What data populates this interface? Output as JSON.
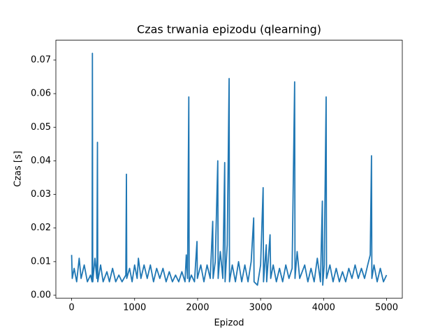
{
  "chart_data": {
    "type": "line",
    "title": "Czas trwania epizodu (qlearning)",
    "x_label": "Epizod",
    "y_label": "Czas [s]",
    "color": "#1f77b4",
    "x": [
      0,
      10,
      40,
      80,
      120,
      150,
      200,
      250,
      300,
      325,
      330,
      335,
      370,
      400,
      410,
      415,
      460,
      500,
      560,
      600,
      650,
      700,
      750,
      800,
      860,
      870,
      875,
      920,
      960,
      1000,
      1040,
      1060,
      1100,
      1150,
      1200,
      1250,
      1300,
      1350,
      1400,
      1450,
      1500,
      1550,
      1600,
      1650,
      1700,
      1750,
      1800,
      1820,
      1840,
      1860,
      1866,
      1900,
      1950,
      1990,
      1996,
      2050,
      2100,
      2150,
      2200,
      2240,
      2246,
      2280,
      2320,
      2326,
      2360,
      2400,
      2430,
      2436,
      2470,
      2500,
      2506,
      2550,
      2600,
      2650,
      2700,
      2750,
      2800,
      2850,
      2890,
      2896,
      2950,
      3000,
      3040,
      3046,
      3090,
      3096,
      3150,
      3160,
      3200,
      3250,
      3300,
      3350,
      3400,
      3450,
      3500,
      3540,
      3546,
      3580,
      3620,
      3700,
      3750,
      3800,
      3850,
      3900,
      3950,
      3980,
      3986,
      4010,
      4040,
      4046,
      4100,
      4150,
      4200,
      4250,
      4300,
      4350,
      4400,
      4450,
      4500,
      4550,
      4600,
      4650,
      4700,
      4740,
      4760,
      4766,
      4800,
      4850,
      4900,
      4950,
      4999
    ],
    "values": [
      0.012,
      0.005,
      0.008,
      0.004,
      0.011,
      0.005,
      0.009,
      0.004,
      0.006,
      0.004,
      0.072,
      0.004,
      0.011,
      0.005,
      0.0455,
      0.004,
      0.009,
      0.004,
      0.007,
      0.004,
      0.008,
      0.004,
      0.006,
      0.004,
      0.006,
      0.036,
      0.005,
      0.008,
      0.004,
      0.009,
      0.005,
      0.011,
      0.005,
      0.009,
      0.005,
      0.009,
      0.004,
      0.008,
      0.005,
      0.008,
      0.004,
      0.007,
      0.004,
      0.006,
      0.004,
      0.007,
      0.004,
      0.012,
      0.005,
      0.059,
      0.004,
      0.006,
      0.004,
      0.016,
      0.005,
      0.009,
      0.004,
      0.009,
      0.005,
      0.022,
      0.005,
      0.01,
      0.04,
      0.005,
      0.013,
      0.005,
      0.0395,
      0.004,
      0.015,
      0.0645,
      0.004,
      0.009,
      0.004,
      0.01,
      0.004,
      0.009,
      0.004,
      0.01,
      0.023,
      0.004,
      0.003,
      0.009,
      0.032,
      0.004,
      0.015,
      0.004,
      0.018,
      0.005,
      0.009,
      0.004,
      0.008,
      0.004,
      0.009,
      0.005,
      0.008,
      0.0635,
      0.005,
      0.013,
      0.005,
      0.009,
      0.004,
      0.008,
      0.004,
      0.011,
      0.004,
      0.028,
      0.003,
      0.009,
      0.059,
      0.005,
      0.009,
      0.004,
      0.008,
      0.004,
      0.007,
      0.004,
      0.008,
      0.005,
      0.009,
      0.005,
      0.008,
      0.005,
      0.009,
      0.012,
      0.0415,
      0.005,
      0.009,
      0.004,
      0.008,
      0.004,
      0.006
    ],
    "xlim": [
      -250,
      5249
    ],
    "xticks": [
      0,
      1000,
      2000,
      3000,
      4000,
      5000
    ],
    "ylim": [
      -0.00087,
      0.0759
    ],
    "yticks": [
      {
        "value": 0,
        "label": "0.00"
      },
      {
        "value": 0.01,
        "label": "0.01"
      },
      {
        "value": 0.02,
        "label": "0.02"
      },
      {
        "value": 0.03,
        "label": "0.03"
      },
      {
        "value": 0.04,
        "label": "0.04"
      },
      {
        "value": 0.05,
        "label": "0.05"
      },
      {
        "value": 0.06,
        "label": "0.06"
      },
      {
        "value": 0.07,
        "label": "0.07"
      }
    ]
  }
}
